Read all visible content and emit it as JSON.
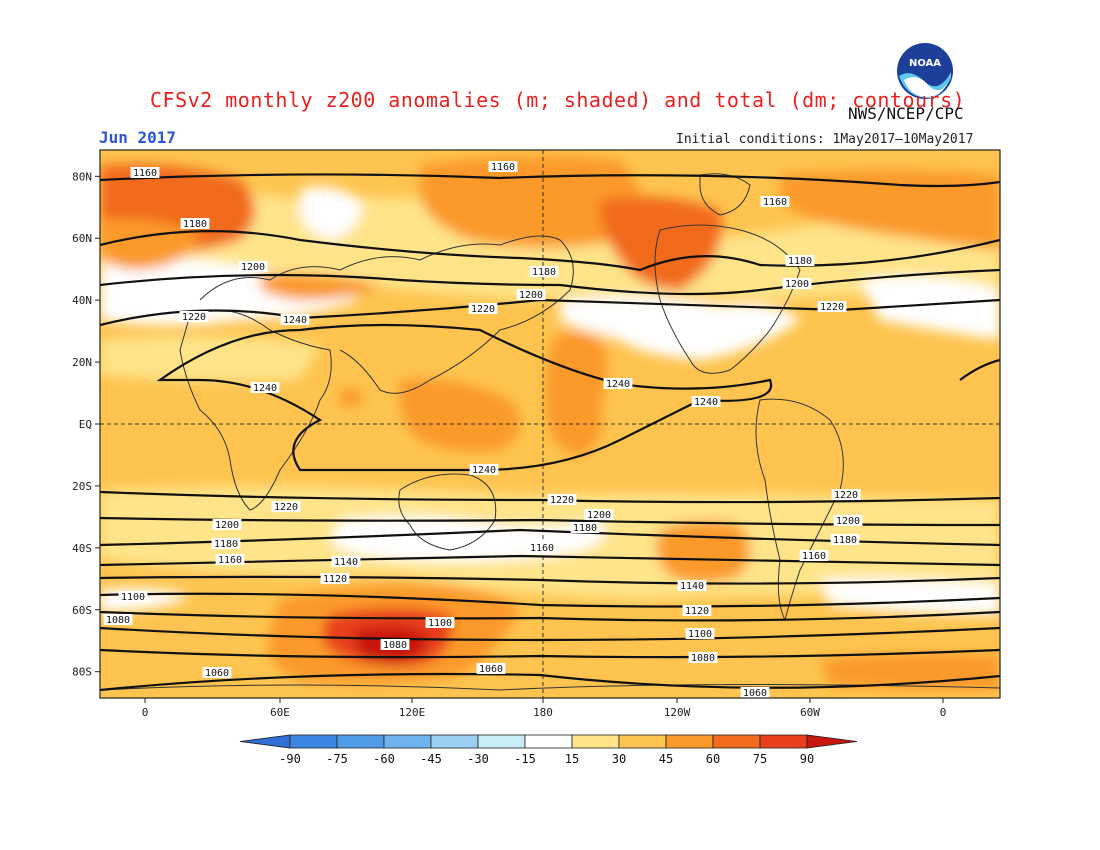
{
  "title": "CFSv2 monthly z200 anomalies (m; shaded) and total (dm; contours)",
  "agency": "NWS/NCEP/CPC",
  "month_label": "Jun 2017",
  "initial_conditions": "Initial conditions: 1May2017–10May2017",
  "logo_text": "NOAA",
  "lat_labels": [
    "80N",
    "60N",
    "40N",
    "20N",
    "EQ",
    "20S",
    "40S",
    "60S",
    "80S"
  ],
  "lon_labels": [
    "0",
    "60E",
    "120E",
    "180",
    "120W",
    "60W",
    "0"
  ],
  "colorbar": {
    "ticks": [
      "-90",
      "-75",
      "-60",
      "-45",
      "-30",
      "-15",
      "15",
      "30",
      "45",
      "60",
      "75",
      "90"
    ],
    "colors": [
      "#2f6fd6",
      "#3a86e2",
      "#4f9be8",
      "#6fb4ee",
      "#9bd0f2",
      "#c7eef4",
      "#ffffff",
      "#ffe48a",
      "#fec44f",
      "#fb9a29",
      "#f26b1c",
      "#e8401a",
      "#c8170f"
    ]
  },
  "contour_labels": [
    {
      "text": "1160"
    },
    {
      "text": "1160"
    },
    {
      "text": "1160"
    },
    {
      "text": "1180"
    },
    {
      "text": "1180"
    },
    {
      "text": "1180"
    },
    {
      "text": "1200"
    },
    {
      "text": "1200"
    },
    {
      "text": "1200"
    },
    {
      "text": "1220"
    },
    {
      "text": "1220"
    },
    {
      "text": "1220"
    },
    {
      "text": "1240"
    },
    {
      "text": "1240"
    },
    {
      "text": "1240"
    },
    {
      "text": "1240"
    },
    {
      "text": "1240"
    },
    {
      "text": "1220"
    },
    {
      "text": "1220"
    },
    {
      "text": "1220"
    },
    {
      "text": "1200"
    },
    {
      "text": "1200"
    },
    {
      "text": "1200"
    },
    {
      "text": "1180"
    },
    {
      "text": "1180"
    },
    {
      "text": "1180"
    },
    {
      "text": "1160"
    },
    {
      "text": "1160"
    },
    {
      "text": "1160"
    },
    {
      "text": "1140"
    },
    {
      "text": "1140"
    },
    {
      "text": "1120"
    },
    {
      "text": "1120"
    },
    {
      "text": "1100"
    },
    {
      "text": "1100"
    },
    {
      "text": "1100"
    },
    {
      "text": "1080"
    },
    {
      "text": "1080"
    },
    {
      "text": "1080"
    },
    {
      "text": "1060"
    },
    {
      "text": "1060"
    },
    {
      "text": "1060"
    }
  ]
}
